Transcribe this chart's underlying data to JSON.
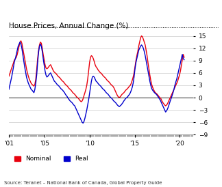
{
  "title": "House Prices, Annual Change (%)",
  "source": "Source: Teranet – National Bank of Canada, Global Property Guide",
  "legend_nominal": "Nominal",
  "legend_real": "Real",
  "nominal_color": "#e8000d",
  "real_color": "#0000cc",
  "background_color": "#ffffff",
  "ylim": [
    -9,
    16
  ],
  "yticks": [
    -9,
    -6,
    -3,
    0,
    3,
    6,
    9,
    12,
    15
  ],
  "xtick_years": [
    2001,
    2005,
    2010,
    2015,
    2020
  ],
  "xtick_labels": [
    "'01",
    "'05",
    "'10",
    "'15",
    "'20"
  ],
  "nominal": [
    5.2,
    5.8,
    6.5,
    7.2,
    7.8,
    8.5,
    9.2,
    9.5,
    9.8,
    10.5,
    11.5,
    12.5,
    13.5,
    13.8,
    13.2,
    12.0,
    10.8,
    9.5,
    8.2,
    7.0,
    6.0,
    5.2,
    4.5,
    4.0,
    3.5,
    3.2,
    3.0,
    2.8,
    3.2,
    4.5,
    6.8,
    9.5,
    11.5,
    12.8,
    13.5,
    13.2,
    12.0,
    10.5,
    9.2,
    8.0,
    7.2,
    7.0,
    7.2,
    7.5,
    7.8,
    8.0,
    7.5,
    7.0,
    6.5,
    6.2,
    6.0,
    5.8,
    5.5,
    5.2,
    5.0,
    4.8,
    4.5,
    4.2,
    4.0,
    3.8,
    3.5,
    3.2,
    3.0,
    2.8,
    2.5,
    2.2,
    2.0,
    1.8,
    1.5,
    1.2,
    1.0,
    0.8,
    0.5,
    0.2,
    0.0,
    -0.2,
    -0.5,
    -0.8,
    -1.0,
    -0.8,
    -0.3,
    0.5,
    1.2,
    2.0,
    3.0,
    4.5,
    6.5,
    8.5,
    9.8,
    10.2,
    10.0,
    9.5,
    8.8,
    8.0,
    7.5,
    7.2,
    6.8,
    6.5,
    6.2,
    6.0,
    5.8,
    5.5,
    5.2,
    5.0,
    4.8,
    4.5,
    4.2,
    4.0,
    3.8,
    3.5,
    3.2,
    3.0,
    2.8,
    2.5,
    2.0,
    1.5,
    1.0,
    0.5,
    0.2,
    0.0,
    0.2,
    0.5,
    0.8,
    1.0,
    1.2,
    1.5,
    1.8,
    2.0,
    2.2,
    2.5,
    2.8,
    3.0,
    3.5,
    4.2,
    5.0,
    6.0,
    7.5,
    9.0,
    10.2,
    11.2,
    12.5,
    13.5,
    14.5,
    15.0,
    14.8,
    14.2,
    13.5,
    12.8,
    11.5,
    10.2,
    8.5,
    7.0,
    5.5,
    4.2,
    3.2,
    2.5,
    2.0,
    1.5,
    1.2,
    1.0,
    0.8,
    0.5,
    0.2,
    0.0,
    -0.3,
    -0.8,
    -1.2,
    -1.5,
    -1.8,
    -2.0,
    -1.8,
    -1.5,
    -1.0,
    -0.5,
    0.0,
    0.5,
    1.0,
    1.5,
    2.0,
    2.5,
    3.0,
    3.5,
    4.0,
    4.8,
    5.5,
    6.5,
    7.8,
    9.2,
    10.5,
    9.8
  ],
  "real": [
    2.0,
    3.0,
    4.0,
    5.0,
    6.2,
    7.5,
    8.8,
    9.5,
    10.5,
    11.5,
    12.5,
    13.0,
    13.5,
    13.0,
    12.0,
    10.5,
    9.0,
    7.5,
    6.2,
    5.0,
    4.2,
    3.5,
    3.0,
    2.5,
    2.0,
    1.8,
    1.5,
    1.2,
    2.0,
    3.5,
    5.5,
    8.5,
    11.0,
    12.5,
    13.0,
    12.5,
    11.2,
    9.5,
    8.0,
    6.5,
    5.5,
    5.0,
    5.2,
    5.5,
    5.8,
    6.0,
    5.5,
    5.0,
    4.5,
    4.0,
    3.8,
    3.5,
    3.2,
    3.0,
    2.8,
    2.5,
    2.2,
    2.0,
    1.8,
    1.5,
    1.2,
    0.8,
    0.5,
    0.2,
    -0.2,
    -0.5,
    -0.8,
    -1.0,
    -1.2,
    -1.5,
    -1.8,
    -2.0,
    -2.5,
    -3.0,
    -3.5,
    -4.0,
    -4.5,
    -5.0,
    -5.5,
    -6.0,
    -6.2,
    -5.8,
    -5.0,
    -4.0,
    -3.0,
    -1.8,
    -0.5,
    1.0,
    2.5,
    4.0,
    5.0,
    5.2,
    5.0,
    4.5,
    4.0,
    3.8,
    3.5,
    3.2,
    3.0,
    2.8,
    2.5,
    2.2,
    2.0,
    1.8,
    1.5,
    1.2,
    1.0,
    0.8,
    0.5,
    0.2,
    0.0,
    -0.2,
    -0.5,
    -0.8,
    -1.0,
    -1.2,
    -1.5,
    -1.8,
    -2.0,
    -2.2,
    -2.0,
    -1.8,
    -1.5,
    -1.2,
    -0.8,
    -0.5,
    -0.2,
    0.0,
    0.2,
    0.5,
    0.8,
    1.2,
    1.8,
    2.5,
    3.5,
    5.0,
    7.0,
    8.5,
    9.5,
    10.5,
    11.5,
    12.0,
    12.5,
    12.8,
    12.5,
    12.0,
    11.2,
    10.2,
    9.0,
    7.8,
    6.5,
    5.2,
    4.0,
    3.0,
    2.2,
    1.8,
    1.5,
    1.2,
    1.0,
    0.8,
    0.5,
    0.2,
    -0.2,
    -0.5,
    -1.0,
    -1.5,
    -2.0,
    -2.5,
    -3.0,
    -3.5,
    -3.2,
    -2.8,
    -2.2,
    -1.5,
    -0.8,
    -0.2,
    0.5,
    1.2,
    2.0,
    3.0,
    3.8,
    4.5,
    5.5,
    6.5,
    7.5,
    8.5,
    9.5,
    10.5,
    9.5,
    9.2
  ]
}
